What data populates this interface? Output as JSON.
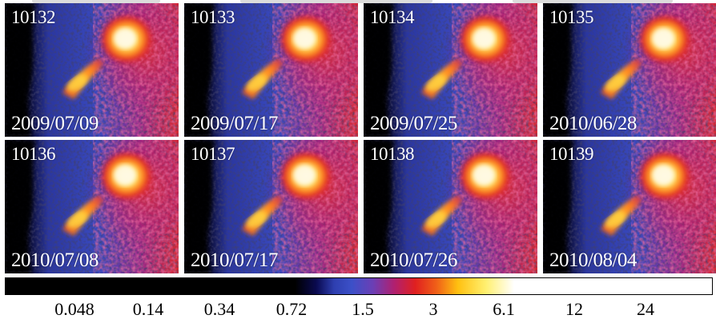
{
  "panels": [
    {
      "id": "10132",
      "date": "2009/07/09"
    },
    {
      "id": "10133",
      "date": "2009/07/17"
    },
    {
      "id": "10134",
      "date": "2009/07/25"
    },
    {
      "id": "10135",
      "date": "2010/06/28"
    },
    {
      "id": "10136",
      "date": "2010/07/08"
    },
    {
      "id": "10137",
      "date": "2010/07/17"
    },
    {
      "id": "10138",
      "date": "2010/07/26"
    },
    {
      "id": "10139",
      "date": "2010/08/04"
    }
  ],
  "colorbar": {
    "ticks": [
      "0.048",
      "0.14",
      "0.34",
      "0.72",
      "1.5",
      "3",
      "6.1",
      "12",
      "24"
    ],
    "colors": [
      "#000000",
      "#2e3fb0",
      "#b02070",
      "#e02020",
      "#ffc010",
      "#ffffff"
    ]
  }
}
